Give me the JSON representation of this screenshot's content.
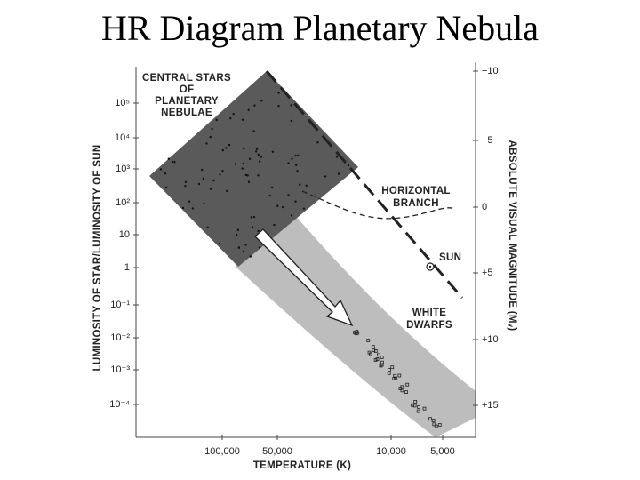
{
  "title": "HR Diagram Planetary Nebula",
  "figure": {
    "y_axis_title": "LUMINOSITY OF STAR/LUMINOSITY OF SUN",
    "y_ticks": [
      "10⁵",
      "10⁴",
      "10³",
      "10²",
      "10",
      "1",
      "10⁻¹",
      "10⁻²",
      "10⁻³",
      "10⁻⁴"
    ],
    "y2_axis_title": "ABSOLUTE VISUAL MAGNITUDE (Mᵥ)",
    "y2_ticks": [
      "−10",
      "−5",
      "0",
      "+5",
      "+10",
      "+15"
    ],
    "x_axis_title": "TEMPERATURE (K)",
    "x_ticks": [
      "100,000",
      "50,000",
      "10,000",
      "5,000"
    ],
    "labels": {
      "central_stars": [
        "CENTRAL STARS",
        "OF",
        "PLANETARY",
        "NEBULAE"
      ],
      "horizontal_branch": [
        "HORIZONTAL",
        "BRANCH"
      ],
      "sun": "SUN",
      "white_dwarfs": [
        "WHITE",
        "DWARFS"
      ]
    }
  }
}
